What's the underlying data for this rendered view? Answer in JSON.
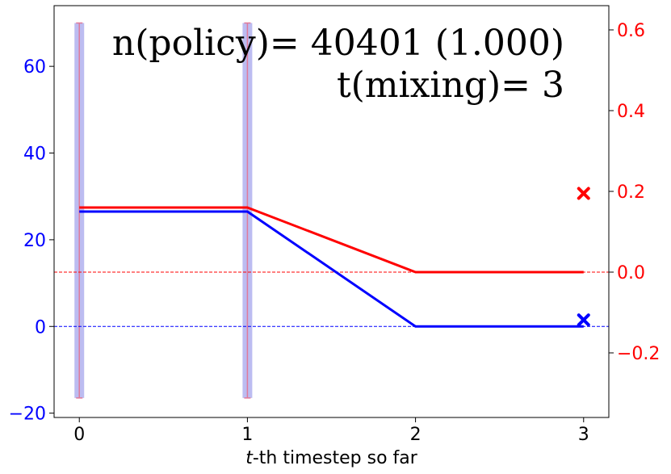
{
  "chart_data": {
    "type": "line",
    "xlabel_italic": "t",
    "xlabel_rest": "-th timestep so far",
    "x_ticks": [
      "0",
      "1",
      "2",
      "3"
    ],
    "xlim": [
      -0.15,
      3.15
    ],
    "left_axis": {
      "color": "#0000ff",
      "ylim": [
        -21,
        74
      ],
      "ticks": [
        -20,
        0,
        20,
        40,
        60
      ],
      "tick_labels": [
        "−20",
        "0",
        "20",
        "40",
        "60"
      ]
    },
    "right_axis": {
      "color": "#ff0000",
      "ylim": [
        -0.36,
        0.66
      ],
      "ticks": [
        -0.2,
        0.0,
        0.2,
        0.4,
        0.6
      ],
      "tick_labels": [
        "−0.2",
        "0.0",
        "0.2",
        "0.4",
        "0.6"
      ]
    },
    "series": [
      {
        "axis": "left",
        "color": "#0000ff",
        "x": [
          0,
          1,
          2,
          3
        ],
        "y": [
          26.5,
          26.5,
          0,
          0
        ]
      },
      {
        "axis": "right",
        "color": "#ff0000",
        "x": [
          0,
          1,
          2,
          3
        ],
        "y": [
          0.16,
          0.16,
          0.0,
          0.0
        ]
      }
    ],
    "markers": [
      {
        "axis": "right",
        "color": "#ff0000",
        "x": 3,
        "y": 0.195,
        "symbol": "x"
      },
      {
        "axis": "left",
        "color": "#0000ff",
        "x": 3,
        "y": 1.5,
        "symbol": "x"
      }
    ],
    "reference_lines": [
      {
        "axis": "left",
        "y": 0,
        "color": "#0000ff",
        "style": "dashed"
      },
      {
        "axis": "right",
        "y": 0.0,
        "color": "#ff0000",
        "style": "dashed"
      }
    ],
    "vertical_bands": [
      {
        "x": 0,
        "y_range_left": [
          -16.5,
          70
        ]
      },
      {
        "x": 1,
        "y_range_left": [
          -16.5,
          70
        ]
      }
    ],
    "annotations": {
      "line1": "n(policy)= 40401 (1.000)",
      "line2": "t(mixing)= 3"
    }
  }
}
